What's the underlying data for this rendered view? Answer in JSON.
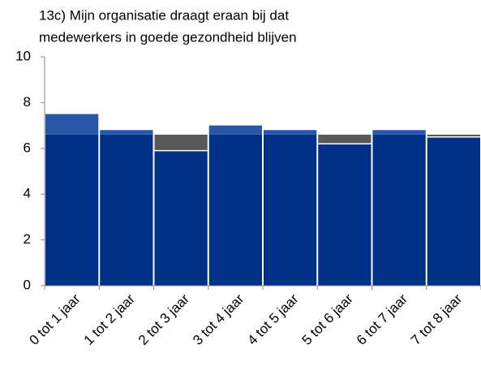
{
  "chart_data": {
    "type": "bar",
    "title": [
      "13c) Mijn organisatie draagt eraan bij dat",
      "medewerkers in goede gezondheid blijven"
    ],
    "categories": [
      "0 tot 1 jaar",
      "1 tot 2 jaar",
      "2 tot 3 jaar",
      "3 tot 4 jaar",
      "4 tot 5 jaar",
      "5 tot 6 jaar",
      "6 tot 7 jaar",
      "7 tot 8 jaar"
    ],
    "series": [
      {
        "color": "#003087",
        "values": [
          7.5,
          6.8,
          5.9,
          7.0,
          6.8,
          6.2,
          6.8,
          6.5
        ]
      },
      {
        "color": "#595959",
        "values": [
          6.6,
          6.6,
          6.6,
          6.6,
          6.6,
          6.6,
          6.6,
          6.6
        ]
      }
    ],
    "above_color": "#2a56a8",
    "ylim": [
      0,
      10
    ],
    "yticks": [
      0,
      2,
      4,
      6,
      8,
      10
    ]
  }
}
